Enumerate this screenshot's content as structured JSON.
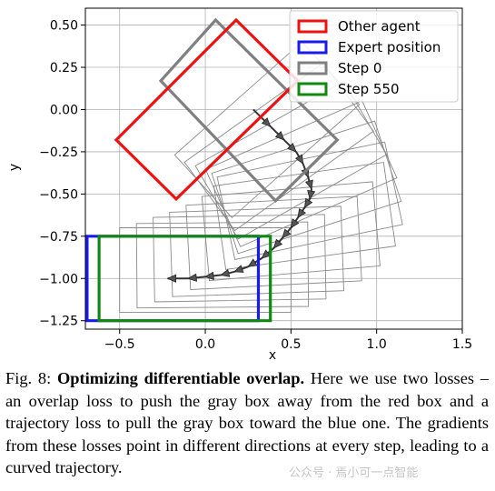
{
  "chart_data": {
    "type": "scatter",
    "title": "",
    "xlabel": "x",
    "ylabel": "y",
    "xlim": [
      -0.7,
      1.5
    ],
    "ylim": [
      -1.3,
      0.6
    ],
    "xticks": [
      "−0.5",
      "0.0",
      "0.5",
      "1.0",
      "1.5"
    ],
    "xtick_values": [
      -0.5,
      0.0,
      0.5,
      1.0,
      1.5
    ],
    "yticks": [
      "0.50",
      "0.25",
      "0.00",
      "−0.25",
      "−0.50",
      "−0.75",
      "−1.00",
      "−1.25"
    ],
    "ytick_values": [
      0.5,
      0.25,
      0.0,
      -0.25,
      -0.5,
      -0.75,
      -1.0,
      -1.25
    ],
    "grid": true,
    "legend_position": "top-right",
    "legend": [
      {
        "label": "Other agent",
        "color": "#ee1111"
      },
      {
        "label": "Expert position",
        "color": "#1a1aee"
      },
      {
        "label": "Step 0",
        "color": "#808080"
      },
      {
        "label": "Step 550",
        "color": "#118811"
      }
    ],
    "boxes": {
      "other_agent": {
        "corners": [
          [
            -0.52,
            -0.18
          ],
          [
            0.18,
            0.53
          ],
          [
            0.54,
            0.17
          ],
          [
            -0.17,
            -0.53
          ]
        ],
        "color": "#ee1111"
      },
      "expert_position": {
        "corners": [
          [
            -0.69,
            -0.75
          ],
          [
            0.31,
            -0.75
          ],
          [
            0.31,
            -1.25
          ],
          [
            -0.69,
            -1.25
          ]
        ],
        "color": "#1a1aee"
      },
      "step_0": {
        "corners": [
          [
            -0.26,
            0.17
          ],
          [
            0.06,
            0.53
          ],
          [
            0.77,
            -0.18
          ],
          [
            0.41,
            -0.54
          ]
        ],
        "color": "#808080"
      },
      "step_550": {
        "corners": [
          [
            -0.62,
            -0.75
          ],
          [
            0.38,
            -0.75
          ],
          [
            0.38,
            -1.25
          ],
          [
            -0.62,
            -1.25
          ]
        ],
        "color": "#118811"
      }
    },
    "intermediate_boxes": [
      {
        "cx": 0.36,
        "cy": -0.12,
        "angle": 42
      },
      {
        "cx": 0.43,
        "cy": -0.22,
        "angle": 36
      },
      {
        "cx": 0.5,
        "cy": -0.3,
        "angle": 30
      },
      {
        "cx": 0.56,
        "cy": -0.38,
        "angle": 24
      },
      {
        "cx": 0.59,
        "cy": -0.46,
        "angle": 18
      },
      {
        "cx": 0.61,
        "cy": -0.54,
        "angle": 12
      },
      {
        "cx": 0.58,
        "cy": -0.63,
        "angle": 8
      },
      {
        "cx": 0.5,
        "cy": -0.72,
        "angle": 5
      },
      {
        "cx": 0.4,
        "cy": -0.79,
        "angle": 3
      },
      {
        "cx": 0.3,
        "cy": -0.84,
        "angle": 2
      },
      {
        "cx": 0.2,
        "cy": -0.88,
        "angle": 1
      },
      {
        "cx": 0.1,
        "cy": -0.92,
        "angle": 0.5
      },
      {
        "cx": 0.0,
        "cy": -0.95,
        "angle": 0
      }
    ],
    "trajectory": [
      [
        0.28,
        -0.0
      ],
      [
        0.38,
        -0.1
      ],
      [
        0.46,
        -0.18
      ],
      [
        0.53,
        -0.25
      ],
      [
        0.57,
        -0.32
      ],
      [
        0.6,
        -0.4
      ],
      [
        0.62,
        -0.47
      ],
      [
        0.61,
        -0.53
      ],
      [
        0.58,
        -0.58
      ],
      [
        0.54,
        -0.64
      ],
      [
        0.5,
        -0.7
      ],
      [
        0.45,
        -0.76
      ],
      [
        0.4,
        -0.82
      ],
      [
        0.33,
        -0.88
      ],
      [
        0.25,
        -0.93
      ],
      [
        0.17,
        -0.96
      ],
      [
        0.09,
        -0.98
      ],
      [
        0.0,
        -0.99
      ],
      [
        -0.1,
        -1.0
      ],
      [
        -0.22,
        -1.0
      ]
    ]
  },
  "caption": {
    "label": "Fig. 8: ",
    "title": "Optimizing differentiable overlap.",
    "body": " Here we use two losses – an overlap loss to push the gray box away from the red box and a trajectory loss to pull the gray box toward the blue one. The gradients from these losses point in different directions at every step, leading to a curved trajectory."
  },
  "watermark": "公众号 · 焉小可一点智能"
}
